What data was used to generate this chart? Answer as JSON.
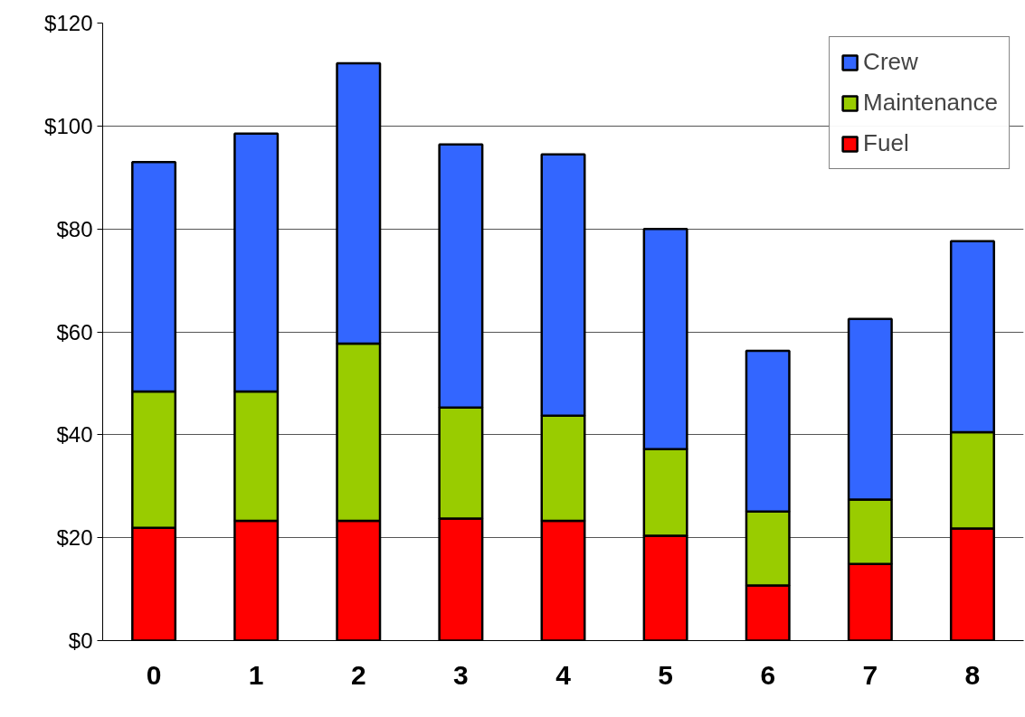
{
  "chart_data": {
    "type": "bar",
    "stacked": true,
    "categories": [
      "0",
      "1",
      "2",
      "3",
      "4",
      "5",
      "6",
      "7",
      "8"
    ],
    "series": [
      {
        "name": "Fuel",
        "color": "#ff0000",
        "values": [
          21.9,
          23.3,
          23.3,
          23.7,
          23.3,
          20.4,
          10.7,
          14.9,
          21.8
        ]
      },
      {
        "name": "Maintenance",
        "color": "#99cc00",
        "values": [
          26.5,
          25.1,
          34.4,
          21.6,
          20.4,
          16.8,
          14.4,
          12.5,
          18.7
        ]
      },
      {
        "name": "Crew",
        "color": "#3366ff",
        "values": [
          44.6,
          50.1,
          54.5,
          51.1,
          50.8,
          42.8,
          31.2,
          35.1,
          37.1
        ]
      }
    ],
    "ylim": [
      0,
      120
    ],
    "yticks": [
      {
        "value": 0,
        "label": "$0"
      },
      {
        "value": 20,
        "label": "$20"
      },
      {
        "value": 40,
        "label": "$40"
      },
      {
        "value": 60,
        "label": "$60"
      },
      {
        "value": 80,
        "label": "$80"
      },
      {
        "value": 100,
        "label": "$100"
      },
      {
        "value": 120,
        "label": "$120"
      }
    ],
    "grid": "y",
    "legend": "top right"
  }
}
